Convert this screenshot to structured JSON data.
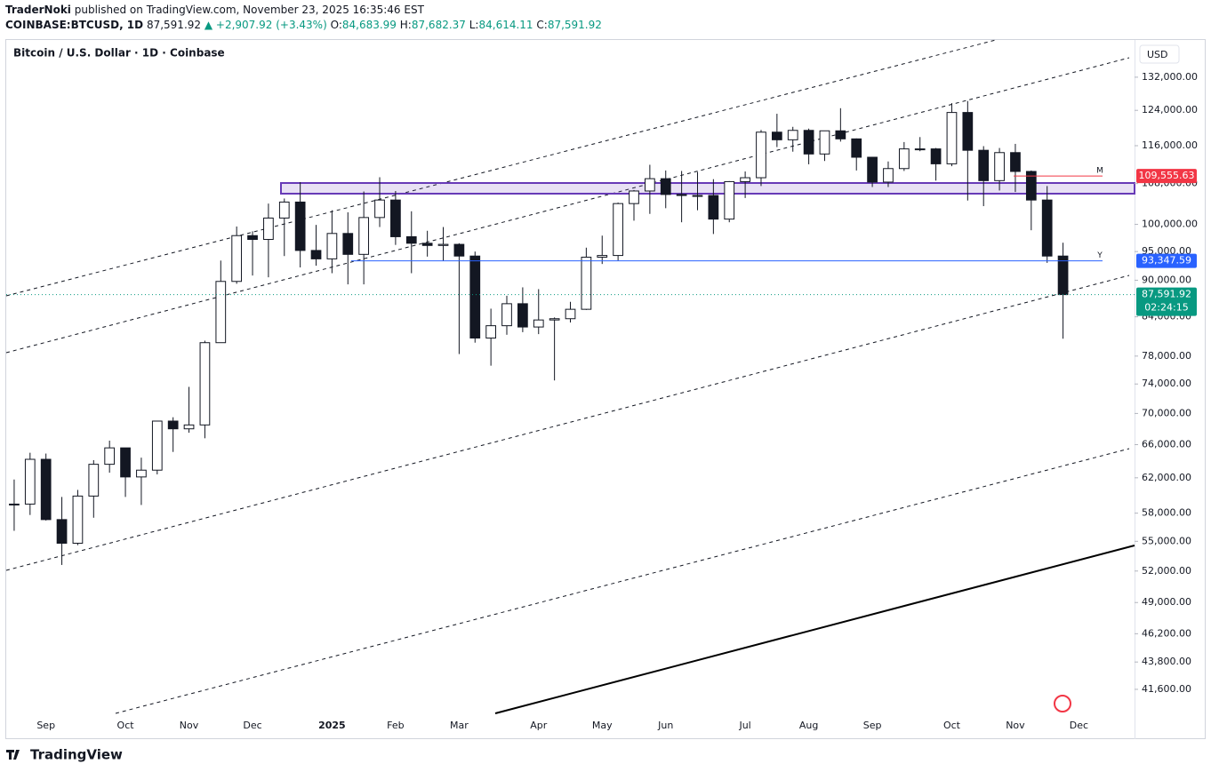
{
  "header": {
    "author": "TraderNoki",
    "published": "published on TradingView.com, November 23, 2025 16:35:46 EST",
    "symbol": "COINBASE:BTCUSD, 1D",
    "last": "87,591.92",
    "change": "▲ +2,907.92 (+3.43%)",
    "o_label": "O:",
    "o": "84,683.99",
    "h_label": "H:",
    "h": "87,682.37",
    "l_label": "L:",
    "l": "84,614.11",
    "c_label": "C:",
    "c": "87,591.92"
  },
  "chart_data": {
    "type": "candlestick",
    "title": "Bitcoin / U.S. Dollar · 1D · Coinbase",
    "currency": "USD",
    "log_scale": true,
    "up_color": "#ffffff",
    "down_color": "#131722",
    "wick_color": "#131722",
    "categories": [
      null,
      null,
      "Sep",
      null,
      null,
      null,
      null,
      "Oct",
      null,
      null,
      null,
      "Nov",
      null,
      null,
      null,
      "Dec",
      null,
      null,
      null,
      null,
      "2025",
      null,
      null,
      null,
      "Feb",
      null,
      null,
      null,
      "Mar",
      null,
      null,
      null,
      null,
      "Apr",
      null,
      null,
      null,
      "May",
      null,
      null,
      null,
      "Jun",
      null,
      null,
      null,
      null,
      "Jul",
      null,
      null,
      null,
      "Aug",
      null,
      null,
      null,
      "Sep",
      null,
      null,
      null,
      null,
      "Oct",
      null,
      null,
      null,
      "Nov",
      null,
      null,
      null,
      "Dec",
      null,
      null,
      null
    ],
    "open": [
      59000,
      59000,
      64200,
      57300,
      54800,
      59900,
      63600,
      65600,
      62100,
      62900,
      69000,
      68000,
      68500,
      80000,
      89800,
      97900,
      97200,
      101200,
      104300,
      95200,
      93700,
      98300,
      94500,
      101300,
      104700,
      97700,
      96500,
      96100,
      96300,
      94200,
      80700,
      82600,
      86100,
      82400,
      83500,
      83700,
      85200,
      94000,
      94300,
      104000,
      106500,
      109000,
      105800,
      105600,
      105600,
      101000,
      108400,
      109200,
      119000,
      117300,
      119400,
      114200,
      119300,
      117500,
      113500,
      108300,
      111100,
      115300,
      115300,
      112100,
      123500,
      115000,
      108600,
      114500,
      110500,
      104700,
      94200,
      null,
      null,
      null,
      null
    ],
    "high": [
      61800,
      65000,
      64900,
      59800,
      60600,
      64100,
      66500,
      65600,
      64400,
      69000,
      69500,
      73600,
      80300,
      93400,
      99600,
      98700,
      104000,
      105000,
      108300,
      99900,
      102700,
      102300,
      106400,
      109300,
      106500,
      102500,
      98800,
      99500,
      96500,
      95000,
      85300,
      87400,
      88800,
      88500,
      83900,
      86400,
      95700,
      97900,
      104200,
      106700,
      111900,
      110700,
      110600,
      110400,
      108900,
      108500,
      110500,
      119500,
      123200,
      120200,
      119800,
      119300,
      124500,
      117600,
      113600,
      112600,
      116800,
      117900,
      115500,
      125700,
      126200,
      115900,
      115500,
      116400,
      110700,
      107500,
      96600,
      null,
      null,
      null,
      null
    ],
    "low": [
      56100,
      57800,
      57200,
      52600,
      54600,
      57500,
      62600,
      59800,
      58900,
      62400,
      65100,
      67500,
      66800,
      80000,
      89400,
      90800,
      90500,
      94200,
      92200,
      92500,
      91200,
      89300,
      89300,
      99500,
      96200,
      91200,
      94100,
      93300,
      78300,
      80000,
      76600,
      81200,
      81600,
      81300,
      74500,
      83100,
      85100,
      92800,
      93400,
      100700,
      102000,
      103100,
      100400,
      102700,
      98200,
      100400,
      105100,
      107500,
      115700,
      114700,
      112000,
      112700,
      116900,
      110700,
      107300,
      107300,
      110600,
      114800,
      108600,
      111600,
      104600,
      103500,
      106600,
      106300,
      98900,
      93000,
      80600,
      null,
      null,
      null,
      null
    ],
    "close": [
      59000,
      64200,
      57300,
      54800,
      59900,
      63600,
      65600,
      62100,
      62900,
      69000,
      68000,
      68500,
      80000,
      89800,
      97900,
      97200,
      101200,
      104300,
      95200,
      93700,
      98300,
      94500,
      101300,
      104700,
      97700,
      96500,
      96100,
      96300,
      94200,
      80700,
      82600,
      86100,
      82400,
      83500,
      83700,
      85200,
      94000,
      94300,
      104000,
      106500,
      109000,
      105800,
      105600,
      105600,
      101000,
      108400,
      109200,
      119000,
      117300,
      119400,
      114200,
      119300,
      117500,
      113500,
      108300,
      111100,
      115300,
      115300,
      112100,
      123500,
      115000,
      108600,
      114500,
      110500,
      104700,
      94200,
      87591.92,
      null,
      null,
      null,
      null
    ],
    "ylim": [
      37870,
      141600
    ],
    "yticks": [
      {
        "value": 132000,
        "label": "132,000.00"
      },
      {
        "value": 124000,
        "label": "124,000.00"
      },
      {
        "value": 116000,
        "label": "116,000.00"
      },
      {
        "value": 108000,
        "label": "108,000.00"
      },
      {
        "value": 100000,
        "label": "100,000.00"
      },
      {
        "value": 95000,
        "label": "95,000.00"
      },
      {
        "value": 90000,
        "label": "90,000.00"
      },
      {
        "value": 84000,
        "label": "84,000.00"
      },
      {
        "value": 78000,
        "label": "78,000.00"
      },
      {
        "value": 74000,
        "label": "74,000.00"
      },
      {
        "value": 70000,
        "label": "70,000.00"
      },
      {
        "value": 66000,
        "label": "66,000.00"
      },
      {
        "value": 62000,
        "label": "62,000.00"
      },
      {
        "value": 58000,
        "label": "58,000.00"
      },
      {
        "value": 55000,
        "label": "55,000.00"
      },
      {
        "value": 52000,
        "label": "52,000.00"
      },
      {
        "value": 49000,
        "label": "49,000.00"
      },
      {
        "value": 46200,
        "label": "46,200.00"
      },
      {
        "value": 43800,
        "label": "43,800.00"
      },
      {
        "value": 41600,
        "label": "41,600.00"
      }
    ],
    "price_lines": [
      {
        "value": 109555.63,
        "label": "109,555.63",
        "tag": "M",
        "color": "#f23645"
      },
      {
        "value": 93347.59,
        "label": "93,347.59",
        "tag": "Y",
        "color": "#2962ff"
      },
      {
        "value": 87591.92,
        "label": "87,591.92",
        "countdown": "02:24:15",
        "color": "#089981"
      }
    ],
    "footer": "TradingView"
  }
}
